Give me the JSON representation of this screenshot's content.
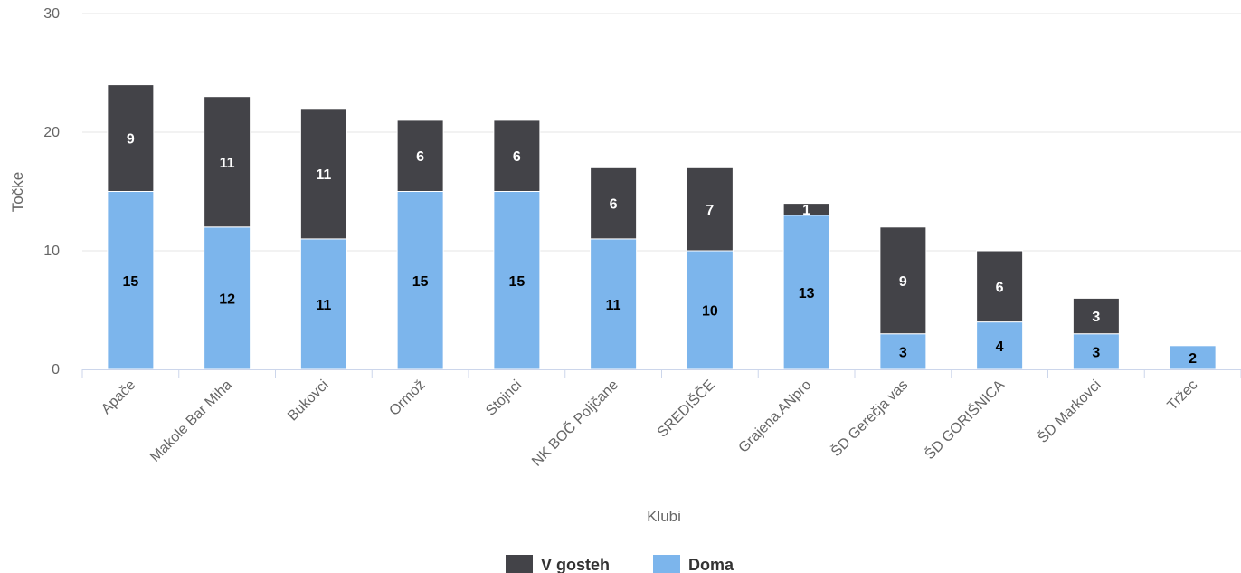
{
  "chart_data": {
    "type": "bar",
    "stacked": true,
    "categories": [
      "Apače",
      "Makole Bar Miha",
      "Bukovci",
      "Ormož",
      "Stojnci",
      "NK BOČ Poljčane",
      "SREDIŠČE",
      "Grajena ANpro",
      "ŠD Gerečja vas",
      "ŠD GORIŠNICA",
      "ŠD Markovci",
      "Tržec"
    ],
    "series": [
      {
        "name": "V gosteh",
        "color": "#434348",
        "values": [
          9,
          11,
          11,
          6,
          6,
          6,
          7,
          1,
          9,
          6,
          3,
          0
        ]
      },
      {
        "name": "Doma",
        "color": "#7cb5ec",
        "values": [
          15,
          12,
          11,
          15,
          15,
          11,
          10,
          13,
          3,
          4,
          3,
          2
        ]
      }
    ],
    "xlabel": "Klubi",
    "ylabel": "Točke",
    "ylim": [
      0,
      30
    ],
    "yticks": [
      0,
      10,
      20,
      30
    ],
    "grid": true,
    "legend_position": "bottom-center",
    "data_labels": true
  }
}
